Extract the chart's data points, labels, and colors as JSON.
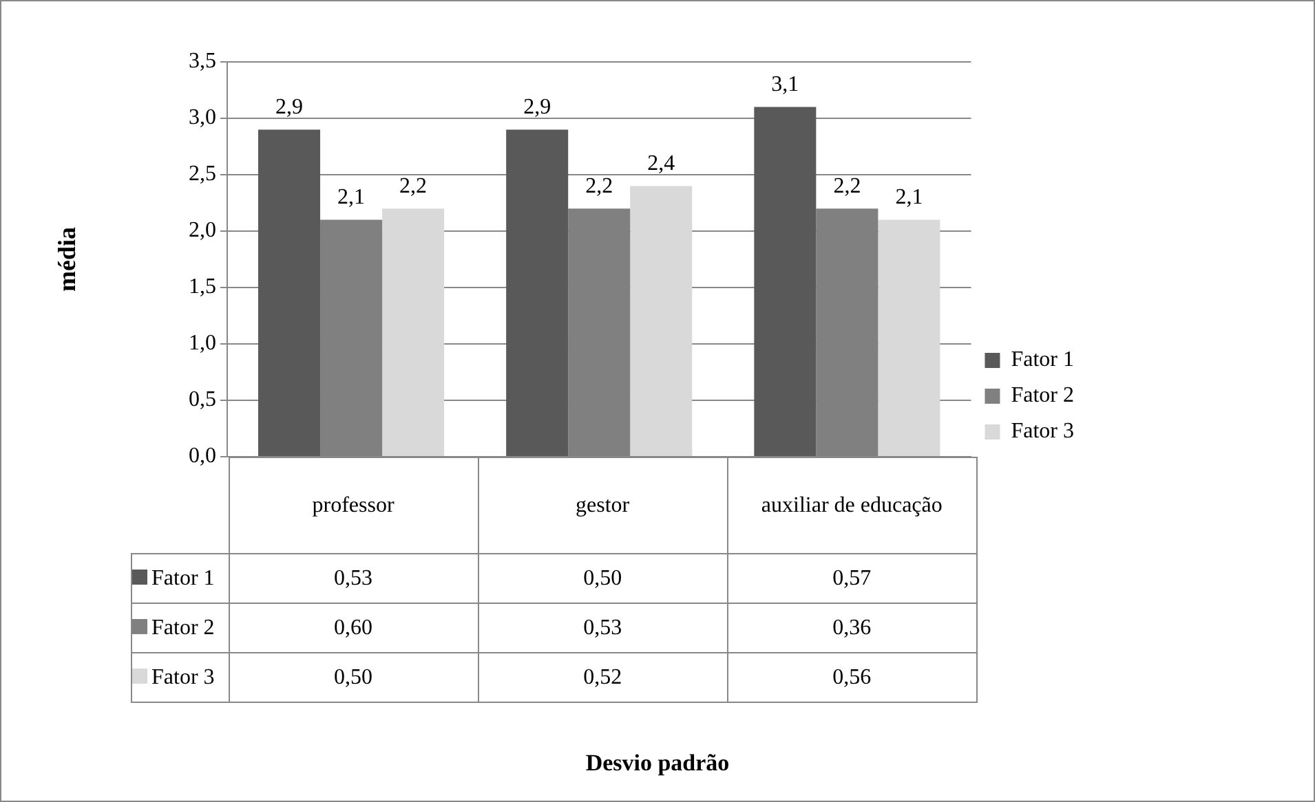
{
  "chart_data": {
    "type": "bar",
    "ylabel": "média",
    "categories": [
      "professor",
      "gestor",
      "auxiliar de educação"
    ],
    "series": [
      {
        "name": "Fator 1",
        "color": "#595959",
        "values": [
          2.9,
          2.9,
          3.1
        ],
        "value_labels": [
          "2,9",
          "2,9",
          "3,1"
        ]
      },
      {
        "name": "Fator 2",
        "color": "#808080",
        "values": [
          2.1,
          2.2,
          2.2
        ],
        "value_labels": [
          "2,1",
          "2,2",
          "2,2"
        ]
      },
      {
        "name": "Fator 3",
        "color": "#d9d9d9",
        "values": [
          2.2,
          2.4,
          2.1
        ],
        "value_labels": [
          "2,2",
          "2,4",
          "2,1"
        ]
      }
    ],
    "ylim": [
      0,
      3.5
    ],
    "yticks": [
      {
        "value": 0,
        "label": "0,0"
      },
      {
        "value": 0.5,
        "label": "0,5"
      },
      {
        "value": 1,
        "label": "1,0"
      },
      {
        "value": 1.5,
        "label": "1,5"
      },
      {
        "value": 2,
        "label": "2,0"
      },
      {
        "value": 2.5,
        "label": "2,5"
      },
      {
        "value": 3,
        "label": "3,0"
      },
      {
        "value": 3.5,
        "label": "3,5"
      }
    ],
    "grid": "y",
    "legend": "right",
    "annotations": [
      "0,53",
      "0,50",
      "0,57",
      "0,60",
      "0,53",
      "0,36",
      "0,50",
      "0,52",
      "0,56",
      "Desvio padrão"
    ]
  }
}
